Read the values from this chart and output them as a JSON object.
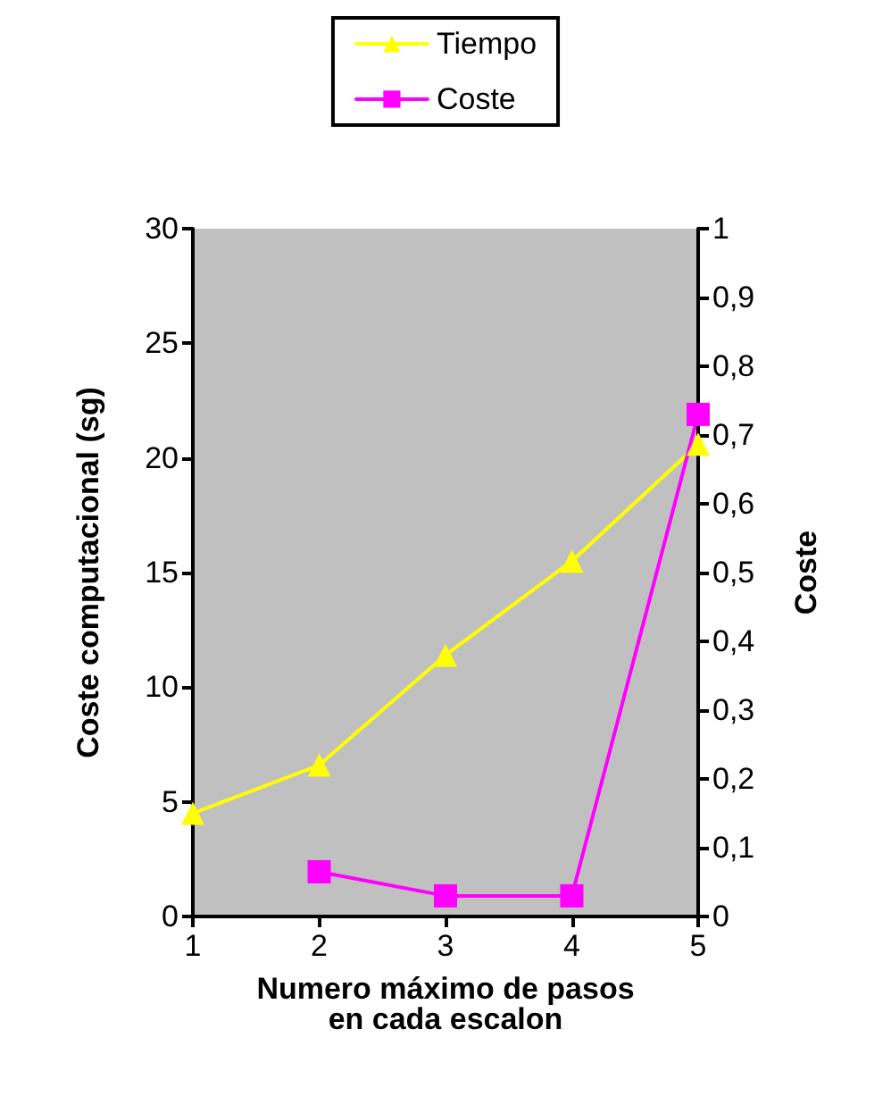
{
  "chart_data": {
    "type": "line",
    "xlabel": "Numero máximo de pasos\nen cada escalon",
    "ylabel": "Coste computacional (sg)",
    "y2label": "Coste",
    "x": [
      1,
      2,
      3,
      4,
      5
    ],
    "series": [
      {
        "name": "Tiempo",
        "color": "#ffff00",
        "marker": "triangle",
        "values": [
          4.5,
          6.6,
          11.4,
          15.5,
          20.6
        ]
      },
      {
        "name": "Coste",
        "color": "#ff00ff",
        "marker": "square",
        "axis": "y2",
        "values": [
          null,
          0.065,
          0.03,
          0.03,
          0.73
        ]
      }
    ],
    "xlim": [
      1,
      5
    ],
    "xticks": [
      1,
      2,
      3,
      4,
      5
    ],
    "ylim": [
      0,
      30
    ],
    "yticks": [
      0,
      5,
      10,
      15,
      20,
      25,
      30
    ],
    "y2lim": [
      0,
      1
    ],
    "y2ticks": [
      0,
      {
        "value": 0.1,
        "label": "0,1"
      },
      {
        "value": 0.2,
        "label": "0,2"
      },
      {
        "value": 0.3,
        "label": "0,3"
      },
      {
        "value": 0.4,
        "label": "0,4"
      },
      {
        "value": 0.5,
        "label": "0,5"
      },
      {
        "value": 0.6,
        "label": "0,6"
      },
      {
        "value": 0.7,
        "label": "0,7"
      },
      {
        "value": 0.8,
        "label": "0,8"
      },
      {
        "value": 0.9,
        "label": "0,9"
      },
      1
    ],
    "grid": false,
    "legend": "top",
    "line_style": "solid"
  }
}
